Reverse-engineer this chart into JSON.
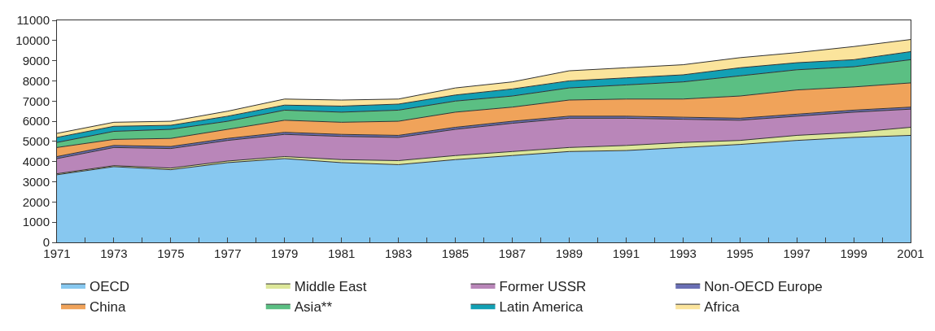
{
  "chart_data": {
    "type": "area",
    "stacked": true,
    "x": [
      1971,
      1973,
      1975,
      1977,
      1979,
      1981,
      1983,
      1985,
      1987,
      1989,
      1991,
      1993,
      1995,
      1997,
      1999,
      2001
    ],
    "series": [
      {
        "name": "OECD",
        "color": "#87c8f0",
        "values": [
          3350,
          3750,
          3600,
          3950,
          4150,
          3950,
          3850,
          4100,
          4300,
          4500,
          4550,
          4700,
          4850,
          5050,
          5200,
          5300
        ]
      },
      {
        "name": "Middle East",
        "color": "#dde79a",
        "values": [
          50,
          50,
          80,
          80,
          100,
          150,
          200,
          200,
          200,
          200,
          250,
          250,
          200,
          250,
          250,
          400
        ]
      },
      {
        "name": "Former USSR",
        "color": "#b986b9",
        "values": [
          750,
          900,
          970,
          1020,
          1100,
          1150,
          1150,
          1300,
          1400,
          1450,
          1350,
          1150,
          1000,
          950,
          1000,
          900
        ]
      },
      {
        "name": "Non-OECD Europe",
        "color": "#6a6fb5",
        "values": [
          100,
          100,
          100,
          100,
          100,
          100,
          100,
          100,
          100,
          100,
          100,
          100,
          100,
          100,
          100,
          100
        ]
      },
      {
        "name": "China",
        "color": "#f0a35a",
        "values": [
          450,
          300,
          400,
          450,
          600,
          600,
          700,
          750,
          700,
          800,
          850,
          900,
          1100,
          1200,
          1150,
          1200
        ]
      },
      {
        "name": "Asia**",
        "color": "#5bbf83",
        "values": [
          250,
          400,
          450,
          400,
          500,
          500,
          550,
          550,
          550,
          600,
          700,
          850,
          1000,
          1000,
          1000,
          1150
        ]
      },
      {
        "name": "Latin America",
        "color": "#12a0b4",
        "values": [
          250,
          250,
          200,
          250,
          250,
          300,
          300,
          300,
          350,
          350,
          350,
          350,
          400,
          350,
          350,
          400
        ]
      },
      {
        "name": "Africa",
        "color": "#fbe49c",
        "values": [
          200,
          200,
          200,
          250,
          300,
          300,
          250,
          350,
          350,
          500,
          500,
          500,
          500,
          500,
          650,
          600
        ]
      }
    ],
    "xlim": [
      1971,
      2001
    ],
    "xticks": [
      1971,
      {
        "value": 1972,
        "label": null
      },
      1973,
      {
        "value": 1974,
        "label": null
      },
      1975,
      {
        "value": 1976,
        "label": null
      },
      1977,
      {
        "value": 1978,
        "label": null
      },
      1979,
      {
        "value": 1980,
        "label": null
      },
      1981,
      {
        "value": 1982,
        "label": null
      },
      1983,
      {
        "value": 1984,
        "label": null
      },
      1985,
      {
        "value": 1986,
        "label": null
      },
      1987,
      {
        "value": 1988,
        "label": null
      },
      1989,
      {
        "value": 1990,
        "label": null
      },
      1991,
      {
        "value": 1992,
        "label": null
      },
      1993,
      {
        "value": 1994,
        "label": null
      },
      1995,
      {
        "value": 1996,
        "label": null
      },
      1997,
      {
        "value": 1998,
        "label": null
      },
      1999,
      {
        "value": 2000,
        "label": null
      },
      2001
    ],
    "ylim": [
      0,
      11000
    ],
    "yticks": [
      0,
      1000,
      2000,
      3000,
      4000,
      5000,
      6000,
      7000,
      8000,
      9000,
      10000,
      11000
    ],
    "legend": "bottom"
  }
}
